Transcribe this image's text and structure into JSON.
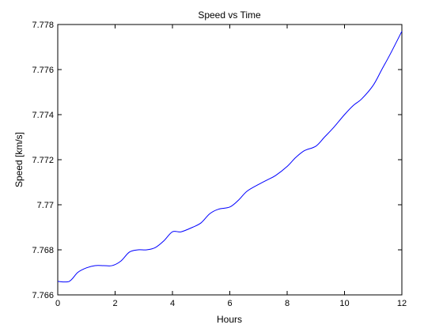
{
  "chart_data": {
    "type": "line",
    "title": "Speed vs Time",
    "xlabel": "Hours",
    "ylabel": "Speed [km/s]",
    "xlim": [
      0,
      12
    ],
    "ylim": [
      7.766,
      7.778
    ],
    "xticks": [
      0,
      2,
      4,
      6,
      8,
      10,
      12
    ],
    "xtick_labels": [
      "0",
      "2",
      "4",
      "6",
      "8",
      "10",
      "12"
    ],
    "yticks": [
      7.766,
      7.768,
      7.77,
      7.772,
      7.774,
      7.776,
      7.778
    ],
    "ytick_labels": [
      "7.766",
      "7.768",
      "7.77",
      "7.772",
      "7.774",
      "7.776",
      "7.778"
    ],
    "grid": false,
    "legend": false,
    "colors": {
      "line": "#0000ff",
      "axes": "#000000",
      "background": "#ffffff"
    },
    "series": [
      {
        "x": [
          0,
          0.4,
          0.7,
          1.0,
          1.3,
          1.6,
          1.9,
          2.2,
          2.5,
          2.8,
          3.1,
          3.4,
          3.7,
          4.0,
          4.3,
          4.7,
          5.0,
          5.3,
          5.6,
          6.0,
          6.3,
          6.6,
          7.0,
          7.3,
          7.6,
          8.0,
          8.3,
          8.6,
          9.0,
          9.3,
          9.6,
          10.0,
          10.3,
          10.6,
          11.0,
          11.3,
          11.6,
          12.0
        ],
        "y": [
          7.7666,
          7.7666,
          7.767,
          7.7672,
          7.7673,
          7.7673,
          7.7673,
          7.7675,
          7.7679,
          7.768,
          7.768,
          7.7681,
          7.7684,
          7.7688,
          7.7688,
          7.769,
          7.7692,
          7.7696,
          7.7698,
          7.7699,
          7.7702,
          7.7706,
          7.7709,
          7.7711,
          7.7713,
          7.7717,
          7.7721,
          7.7724,
          7.7726,
          7.773,
          7.7734,
          7.774,
          7.7744,
          7.7747,
          7.7753,
          7.776,
          7.7767,
          7.7777
        ]
      }
    ]
  }
}
